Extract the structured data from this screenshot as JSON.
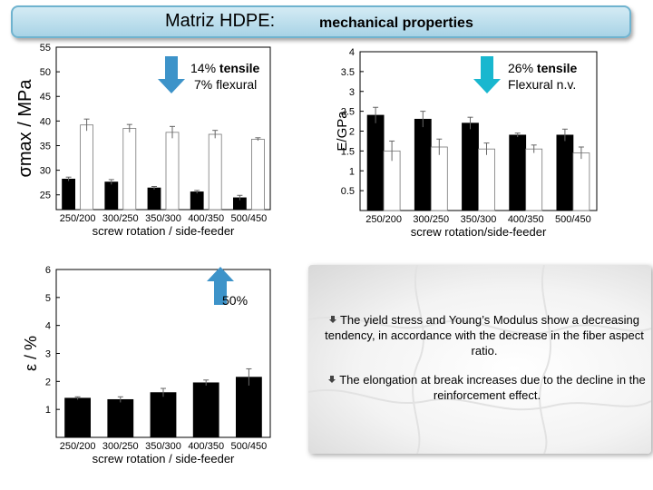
{
  "header": {
    "title_main": "Matriz HDPE:",
    "title_sub": "mechanical properties"
  },
  "charts_text": {
    "c1_ann_l1": "14% tensile",
    "c1_ann_l2": "7%  flexural",
    "c2_ann_l1": "26% tensile",
    "c2_ann_l2": "Flexural n.v.",
    "c3_ann": "50%"
  },
  "chart_data": [
    {
      "type": "bar",
      "categories": [
        "250/200",
        "300/250",
        "350/300",
        "400/350",
        "500/450"
      ],
      "xlabel": "screw rotation / side-feeder",
      "ylabel": "σmax / MPa",
      "ylim": [
        22,
        55
      ],
      "yticks": [
        25,
        30,
        35,
        40,
        45,
        50,
        55
      ],
      "series": [
        {
          "values": [
            28.2,
            27.6,
            26.4,
            25.6,
            24.4
          ],
          "errors": [
            0.4,
            0.5,
            0.3,
            0.3,
            0.5
          ],
          "color": "#000000"
        },
        {
          "values": [
            39.2,
            38.5,
            37.7,
            37.3,
            36.3
          ],
          "errors": [
            1.2,
            0.8,
            1.2,
            0.8,
            0.3
          ],
          "color": "#ffffff"
        }
      ]
    },
    {
      "type": "bar",
      "categories": [
        "250/200",
        "300/250",
        "350/300",
        "400/350",
        "500/450"
      ],
      "xlabel": "screw rotation/side-feeder",
      "ylabel": "E/GPa",
      "ylim": [
        0,
        4.0
      ],
      "yticks": [
        0.5,
        1.0,
        1.5,
        2.0,
        2.5,
        3.0,
        3.5,
        4.0
      ],
      "series": [
        {
          "values": [
            2.4,
            2.3,
            2.2,
            1.9,
            1.9
          ],
          "errors": [
            0.2,
            0.2,
            0.15,
            0.05,
            0.15
          ],
          "color": "#000000"
        },
        {
          "values": [
            1.5,
            1.6,
            1.55,
            1.55,
            1.45
          ],
          "errors": [
            0.25,
            0.2,
            0.15,
            0.1,
            0.15
          ],
          "color": "#ffffff"
        }
      ]
    },
    {
      "type": "bar",
      "categories": [
        "250/200",
        "300/250",
        "350/300",
        "400/350",
        "500/450"
      ],
      "xlabel": "screw rotation / side-feeder",
      "ylabel": "ε / %",
      "ylim": [
        0,
        6
      ],
      "yticks": [
        1,
        2,
        3,
        4,
        5,
        6
      ],
      "series": [
        {
          "values": [
            1.4,
            1.35,
            1.6,
            1.95,
            2.15
          ],
          "errors": [
            0.05,
            0.1,
            0.15,
            0.1,
            0.3
          ],
          "color": "#000000"
        }
      ]
    }
  ],
  "notes": {
    "bullet1": "The yield stress and Young’s Modulus show a decreasing tendency, in accordance with the decrease in the fiber aspect ratio.",
    "bullet2": "The elongation at break increases due to the decline in the reinforcement effect."
  },
  "colors": {
    "arrow_down": "#3d93c9",
    "arrow_up": "#3d93c9",
    "arrow_cyan": "#19b7cf",
    "title_bg": "#bfe1ee"
  }
}
